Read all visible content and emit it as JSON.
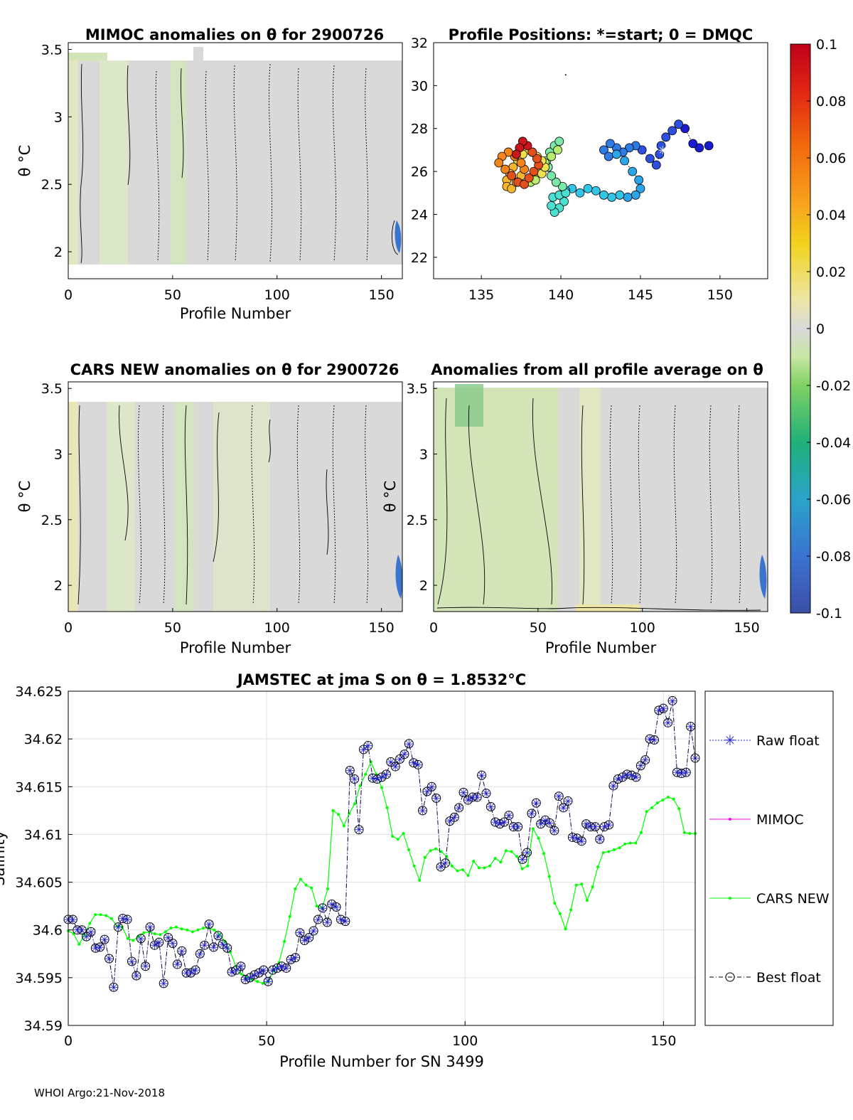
{
  "panels": {
    "mimoc": {
      "title": "MIMOC anomalies on θ  for 2900726",
      "xlabel": "Profile Number",
      "ylabel": "θ °C",
      "xticks": [
        "0",
        "50",
        "100",
        "150"
      ],
      "yticks": [
        "2",
        "2.5",
        "3",
        "3.5"
      ],
      "xlim": [
        0,
        160
      ],
      "ylim": [
        1.8,
        3.55
      ]
    },
    "positions": {
      "title": "Profile Positions: *=start; 0 = DMQC",
      "xticks": [
        "135",
        "140",
        "145",
        "150"
      ],
      "yticks": [
        "22",
        "24",
        "26",
        "28",
        "30",
        "32"
      ],
      "xlim": [
        132,
        153
      ],
      "ylim": [
        21,
        32
      ]
    },
    "colorbar": {
      "ticks": [
        "0.1",
        "0.08",
        "0.06",
        "0.04",
        "0.02",
        "0",
        "-0.02",
        "-0.04",
        "-0.06",
        "-0.08",
        "-0.1"
      ],
      "range": [
        -0.1,
        0.1
      ]
    },
    "cars": {
      "title": "CARS NEW anomalies on θ for 2900726",
      "xlabel": "Profile Number",
      "ylabel": "θ °C",
      "xticks": [
        "0",
        "50",
        "100",
        "150"
      ],
      "yticks": [
        "2",
        "2.5",
        "3",
        "3.5"
      ]
    },
    "allprof": {
      "title": "Anomalies from all profile average on θ",
      "xlabel": "Profile Number",
      "ylabel": "θ °C",
      "xticks": [
        "0",
        "50",
        "100",
        "150"
      ],
      "yticks": [
        "2",
        "2.5",
        "3",
        "3.5"
      ]
    }
  },
  "chart_data": {
    "type": "line",
    "title": "JAMSTEC at jma S on θ = 1.8532°C",
    "xlabel": "Profile Number for SN 3499",
    "ylabel": "Salinity",
    "xlim": [
      0,
      158
    ],
    "ylim": [
      34.59,
      34.625
    ],
    "xticks": [
      "0",
      "50",
      "100",
      "150"
    ],
    "yticks": [
      "34.59",
      "34.595",
      "34.6",
      "34.605",
      "34.61",
      "34.615",
      "34.62",
      "34.625"
    ],
    "grid": true,
    "legend_position": "right",
    "legend": [
      "Raw float",
      "MIMOC",
      "CARS NEW",
      "Best float"
    ],
    "series": [
      {
        "name": "Raw float",
        "color": "#1f1fd6",
        "y": [
          34.6011,
          34.6011,
          34.6,
          34.6,
          34.5993,
          34.5998,
          34.5981,
          34.5982,
          34.599,
          34.597,
          34.594,
          34.6003,
          34.6012,
          34.6011,
          34.5967,
          34.5952,
          34.5991,
          34.5962,
          34.6003,
          34.5984,
          34.5987,
          34.5944,
          34.5992,
          34.5986,
          34.5964,
          34.5978,
          34.5955,
          34.5955,
          34.5958,
          34.5975,
          34.5984,
          34.6006,
          34.5982,
          34.5994,
          34.5985,
          34.5981,
          34.5956,
          34.5958,
          34.5962,
          34.5948,
          34.595,
          34.5953,
          34.5955,
          34.5958,
          34.5946,
          34.5958,
          34.596,
          34.5962,
          34.596,
          34.5969,
          34.5971,
          34.5997,
          34.5989,
          34.5992,
          34.5999,
          34.6011,
          34.6023,
          34.6008,
          34.6027,
          34.6024,
          34.6011,
          34.6009,
          34.6167,
          34.6158,
          34.6105,
          34.6189,
          34.6193,
          34.6159,
          34.6158,
          34.616,
          34.6163,
          34.6176,
          34.6171,
          34.6179,
          34.6184,
          34.6195,
          34.6175,
          34.6173,
          34.6125,
          34.6145,
          34.615,
          34.6138,
          34.6066,
          34.607,
          34.6114,
          34.6118,
          34.6128,
          34.6144,
          34.6136,
          34.6139,
          34.6139,
          34.6162,
          34.6143,
          34.6129,
          34.6113,
          34.6111,
          34.6113,
          34.612,
          34.6108,
          34.6108,
          34.6074,
          34.6081,
          34.6122,
          34.6133,
          34.6111,
          34.6115,
          34.6112,
          34.6104,
          34.614,
          34.6128,
          34.6135,
          34.6097,
          34.6096,
          34.6093,
          34.6111,
          34.6108,
          34.6108,
          34.6095,
          34.6108,
          34.611,
          34.6151,
          34.6158,
          34.616,
          34.6163,
          34.6162,
          34.616,
          34.6172,
          34.6178,
          34.62,
          34.6199,
          34.623,
          34.6232,
          34.6217,
          34.624,
          34.6165,
          34.6164,
          34.6165,
          34.6213,
          34.618
        ]
      },
      {
        "name": "MIMOC",
        "color": "#ff00ff",
        "y": []
      },
      {
        "name": "CARS NEW",
        "color": "#00ff00",
        "y": [
          34.5999,
          34.5996,
          34.5985,
          34.5995,
          34.6007,
          34.6016,
          34.6016,
          34.6015,
          34.6012,
          34.6004,
          34.6003,
          34.5991,
          34.5989,
          34.5993,
          34.5997,
          34.5998,
          34.5996,
          34.5995,
          34.5998,
          34.6002,
          34.6003,
          34.6001,
          34.6,
          34.5998,
          34.6,
          34.6002,
          34.6002,
          34.6,
          34.5995,
          34.5988,
          34.5977,
          34.5962,
          34.5954,
          34.595,
          34.5948,
          34.5946,
          34.5944,
          34.5946,
          34.5957,
          34.5966,
          34.5988,
          34.6014,
          34.6043,
          34.6053,
          34.6047,
          34.6044,
          34.6025,
          34.6023,
          34.6043,
          34.6125,
          34.6121,
          34.6109,
          34.6122,
          34.6132,
          34.6151,
          34.6163,
          34.6176,
          34.6163,
          34.6149,
          34.6128,
          34.6098,
          34.6095,
          34.6101,
          34.6084,
          34.6067,
          34.6052,
          34.6076,
          34.6083,
          34.6085,
          34.6082,
          34.6077,
          34.6067,
          34.6062,
          34.6063,
          34.6057,
          34.6072,
          34.6065,
          34.6065,
          34.6067,
          34.6075,
          34.6071,
          34.6083,
          34.6082,
          34.6077,
          34.6064,
          34.6067,
          34.6106,
          34.6096,
          34.608,
          34.6056,
          34.6028,
          34.6017,
          34.6001,
          34.6021,
          34.6047,
          34.6048,
          34.6031,
          34.6045,
          34.6066,
          34.6081,
          34.6082,
          34.6084,
          34.6086,
          34.609,
          34.6091,
          34.6091,
          34.6102,
          34.6124,
          34.6128,
          34.6133,
          34.6136,
          34.6139,
          34.6137,
          34.6127,
          34.6102,
          34.6101,
          34.6101
        ]
      },
      {
        "name": "Best float",
        "color": "#000000",
        "y": [
          34.6011,
          34.6011,
          34.6,
          34.6,
          34.5993,
          34.5998,
          34.5981,
          34.5982,
          34.599,
          34.597,
          34.594,
          34.6003,
          34.6012,
          34.6011,
          34.5967,
          34.5952,
          34.5991,
          34.5962,
          34.6003,
          34.5984,
          34.5987,
          34.5944,
          34.5992,
          34.5986,
          34.5964,
          34.5978,
          34.5955,
          34.5955,
          34.5958,
          34.5975,
          34.5984,
          34.6006,
          34.5982,
          34.5994,
          34.5985,
          34.5981,
          34.5956,
          34.5958,
          34.5962,
          34.5948,
          34.595,
          34.5953,
          34.5955,
          34.5958,
          34.5946,
          34.5958,
          34.596,
          34.5962,
          34.596,
          34.5969,
          34.5971,
          34.5997,
          34.5989,
          34.5992,
          34.5999,
          34.6011,
          34.6023,
          34.6008,
          34.6027,
          34.6024,
          34.6011,
          34.6009,
          34.6167,
          34.6158,
          34.6105,
          34.6189,
          34.6193,
          34.6159,
          34.6158,
          34.616,
          34.6163,
          34.6176,
          34.6171,
          34.6179,
          34.6184,
          34.6195,
          34.6175,
          34.6173,
          34.6125,
          34.6145,
          34.615,
          34.6138,
          34.6066,
          34.607,
          34.6114,
          34.6118,
          34.6128,
          34.6144,
          34.6136,
          34.6139,
          34.6139,
          34.6162,
          34.6143,
          34.6129,
          34.6113,
          34.6111,
          34.6113,
          34.612,
          34.6108,
          34.6108,
          34.6074,
          34.6081,
          34.6122,
          34.6133,
          34.6111,
          34.6115,
          34.6112,
          34.6104,
          34.614,
          34.6128,
          34.6135,
          34.6097,
          34.6096,
          34.6093,
          34.6111,
          34.6108,
          34.6108,
          34.6095,
          34.6108,
          34.611,
          34.6151,
          34.6158,
          34.616,
          34.6163,
          34.6162,
          34.616,
          34.6172,
          34.6178,
          34.62,
          34.6199,
          34.623,
          34.6232,
          34.6217,
          34.624,
          34.6165,
          34.6164,
          34.6165,
          34.6213,
          34.618
        ]
      }
    ]
  },
  "footer": "WHOI Argo:21-Nov-2018"
}
